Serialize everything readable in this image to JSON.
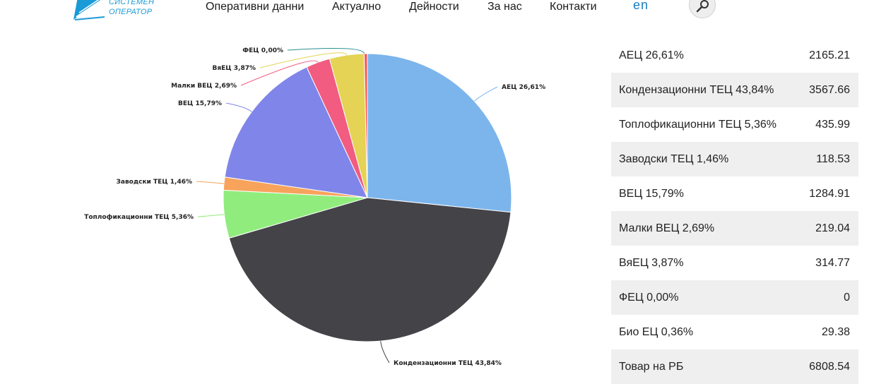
{
  "header": {
    "logo": {
      "line1": "СИСТЕМЕН",
      "line2": "ОПЕРАТОР"
    },
    "nav": [
      "Оперативни данни",
      "Актуално",
      "Дейности",
      "За нас",
      "Контакти"
    ],
    "lang": "en",
    "search_icon": "search-icon"
  },
  "chart_data": {
    "type": "pie",
    "slices": [
      {
        "label": "АЕЦ 26,61%",
        "value": 26.61,
        "color": "#7cb5ec"
      },
      {
        "label": "Кондензационни ТЕЦ 43,84%",
        "value": 43.84,
        "color": "#434348"
      },
      {
        "label": "Топлофикационни ТЕЦ 5,36%",
        "value": 5.36,
        "color": "#90ed7d"
      },
      {
        "label": "Заводски ТЕЦ 1,46%",
        "value": 1.46,
        "color": "#f7a35c"
      },
      {
        "label": "ВЕЦ 15,79%",
        "value": 15.79,
        "color": "#8085e9"
      },
      {
        "label": "Малки ВЕЦ 2,69%",
        "value": 2.69,
        "color": "#f15c80"
      },
      {
        "label": "ВяЕЦ 3,87%",
        "value": 3.87,
        "color": "#e4d354"
      },
      {
        "label": "ФЕЦ 0,00%",
        "value": 0.0,
        "color": "#2b908f"
      },
      {
        "label": "Био ЕЦ 0,36%",
        "value": 0.36,
        "color": "#f45b5b"
      }
    ]
  },
  "table": {
    "rows": [
      {
        "name": "АЕЦ 26,61%",
        "value": "2165.21"
      },
      {
        "name": "Кондензационни ТЕЦ 43,84%",
        "value": "3567.66"
      },
      {
        "name": "Топлофикационни ТЕЦ 5,36%",
        "value": "435.99"
      },
      {
        "name": "Заводски ТЕЦ 1,46%",
        "value": "118.53"
      },
      {
        "name": "ВЕЦ 15,79%",
        "value": "1284.91"
      },
      {
        "name": "Малки ВЕЦ 2,69%",
        "value": "219.04"
      },
      {
        "name": "ВяЕЦ 3,87%",
        "value": "314.77"
      },
      {
        "name": "ФЕЦ 0,00%",
        "value": "0"
      },
      {
        "name": "Био ЕЦ 0,36%",
        "value": "29.38"
      }
    ],
    "total": {
      "name": "Товар на РБ",
      "value": "6808.54"
    }
  }
}
